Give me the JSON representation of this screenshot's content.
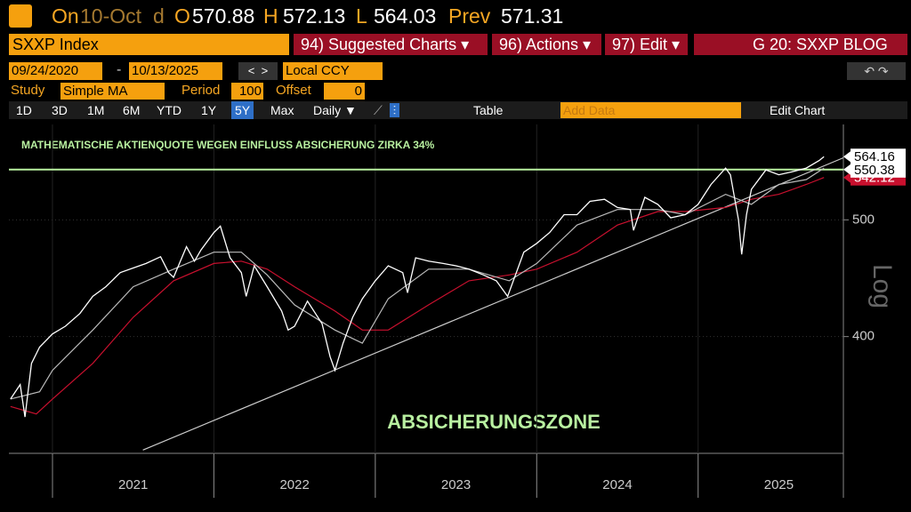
{
  "ui": {
    "header": {
      "on": "On",
      "date": "10-Oct",
      "period": "d",
      "open_label": "O",
      "open": "570.88",
      "high_label": "H",
      "high": "572.13",
      "low_label": "L",
      "low": "564.03",
      "prev_label": "Prev",
      "prev": "571.31"
    },
    "security": "SXXP Index",
    "menus": [
      "94) Suggested Charts ▾",
      "96) Actions ▾",
      "97) Edit ▾"
    ],
    "blog": "G 20: SXXP BLOG",
    "start_date": "09/24/2020",
    "end_date": "10/13/2025",
    "currency": "Local CCY",
    "study_label": "Study",
    "study": "Simple MA",
    "period_label": "Period",
    "period_value": "100",
    "offset_label": "Offset",
    "offset_value": "0",
    "ranges": [
      "1D",
      "3D",
      "1M",
      "6M",
      "YTD",
      "1Y",
      "5Y",
      "Max"
    ],
    "active_range_index": 6,
    "frequency": "Daily ▼",
    "table": "Table",
    "add_data": "Add Data",
    "edit_chart": "Edit Chart"
  },
  "chart_data": {
    "type": "line",
    "log_scale": true,
    "annotations": [
      "MATHEMATISCHE AKTIENQUOTE WEGEN EINFLUSS ABSICHERUNG ZIRKA 34%",
      "ABSICHERUNGSZONE"
    ],
    "y_axis_label": "Log",
    "xlim": [
      2020.73,
      2025.9
    ],
    "xticks": [
      {
        "value": 2021.5,
        "label": "2021"
      },
      {
        "value": 2022.5,
        "label": "2022"
      },
      {
        "value": 2023.5,
        "label": "2023"
      },
      {
        "value": 2024.5,
        "label": "2024"
      },
      {
        "value": 2025.5,
        "label": "2025"
      }
    ],
    "ylim": [
      320,
      600
    ],
    "yticks": [
      400,
      500
    ],
    "series": [
      {
        "color": "#ffffff",
        "x": [
          2020.74,
          2020.8,
          2020.83,
          2020.87,
          2020.92,
          2021.0,
          2021.08,
          2021.17,
          2021.25,
          2021.33,
          2021.42,
          2021.5,
          2021.58,
          2021.67,
          2021.72,
          2021.75,
          2021.83,
          2021.88,
          2021.92,
          2022.0,
          2022.04,
          2022.1,
          2022.17,
          2022.2,
          2022.25,
          2022.33,
          2022.42,
          2022.46,
          2022.5,
          2022.58,
          2022.67,
          2022.72,
          2022.75,
          2022.8,
          2022.86,
          2022.92,
          2023.0,
          2023.08,
          2023.17,
          2023.2,
          2023.25,
          2023.33,
          2023.42,
          2023.5,
          2023.58,
          2023.67,
          2023.75,
          2023.82,
          2023.92,
          2024.0,
          2024.08,
          2024.17,
          2024.25,
          2024.33,
          2024.42,
          2024.5,
          2024.58,
          2024.6,
          2024.67,
          2024.75,
          2024.83,
          2024.92,
          2025.0,
          2025.08,
          2025.17,
          2025.2,
          2025.25,
          2025.27,
          2025.3,
          2025.33,
          2025.42,
          2025.5,
          2025.58,
          2025.67,
          2025.75,
          2025.78
        ],
        "values": [
          355,
          365,
          343,
          380,
          392,
          402,
          408,
          418,
          432,
          440,
          452,
          456,
          460,
          466,
          452,
          448,
          475,
          462,
          472,
          488,
          494,
          465,
          452,
          432,
          458,
          440,
          420,
          405,
          408,
          428,
          410,
          385,
          375,
          395,
          415,
          430,
          445,
          458,
          452,
          435,
          465,
          462,
          460,
          458,
          455,
          450,
          445,
          432,
          470,
          478,
          488,
          505,
          505,
          518,
          520,
          512,
          510,
          490,
          522,
          515,
          502,
          505,
          515,
          535,
          552,
          545,
          500,
          468,
          505,
          530,
          550,
          545,
          548,
          552,
          560,
          564.16
        ]
      },
      {
        "color": "#bbbbbb",
        "x": [
          2020.74,
          2020.92,
          2021.0,
          2021.25,
          2021.5,
          2021.75,
          2022.0,
          2022.17,
          2022.33,
          2022.5,
          2022.75,
          2022.92,
          2023.08,
          2023.33,
          2023.58,
          2023.83,
          2024.0,
          2024.25,
          2024.5,
          2024.75,
          2024.92,
          2025.17,
          2025.33,
          2025.5,
          2025.67,
          2025.78
        ],
        "values": [
          355,
          360,
          375,
          405,
          440,
          455,
          470,
          470,
          450,
          425,
          405,
          395,
          430,
          455,
          455,
          445,
          460,
          495,
          510,
          510,
          505,
          525,
          515,
          535,
          540,
          552
        ]
      },
      {
        "color": "#c8102e",
        "x": [
          2020.74,
          2020.9,
          2021.0,
          2021.25,
          2021.5,
          2021.75,
          2022.0,
          2022.17,
          2022.33,
          2022.5,
          2022.75,
          2022.92,
          2023.08,
          2023.33,
          2023.58,
          2023.83,
          2024.0,
          2024.25,
          2024.5,
          2024.75,
          2024.92,
          2025.17,
          2025.33,
          2025.5,
          2025.67,
          2025.78
        ],
        "values": [
          350,
          345,
          355,
          380,
          415,
          445,
          460,
          462,
          455,
          440,
          420,
          405,
          405,
          425,
          445,
          450,
          455,
          470,
          495,
          508,
          508,
          512,
          520,
          525,
          535,
          542.12
        ]
      },
      {
        "color": "#cccccc",
        "x": [
          2021.56,
          2025.9
        ],
        "values": [
          322,
          563
        ]
      }
    ],
    "hline": {
      "value": 550.38,
      "color": "#b8f0a0"
    }
  }
}
